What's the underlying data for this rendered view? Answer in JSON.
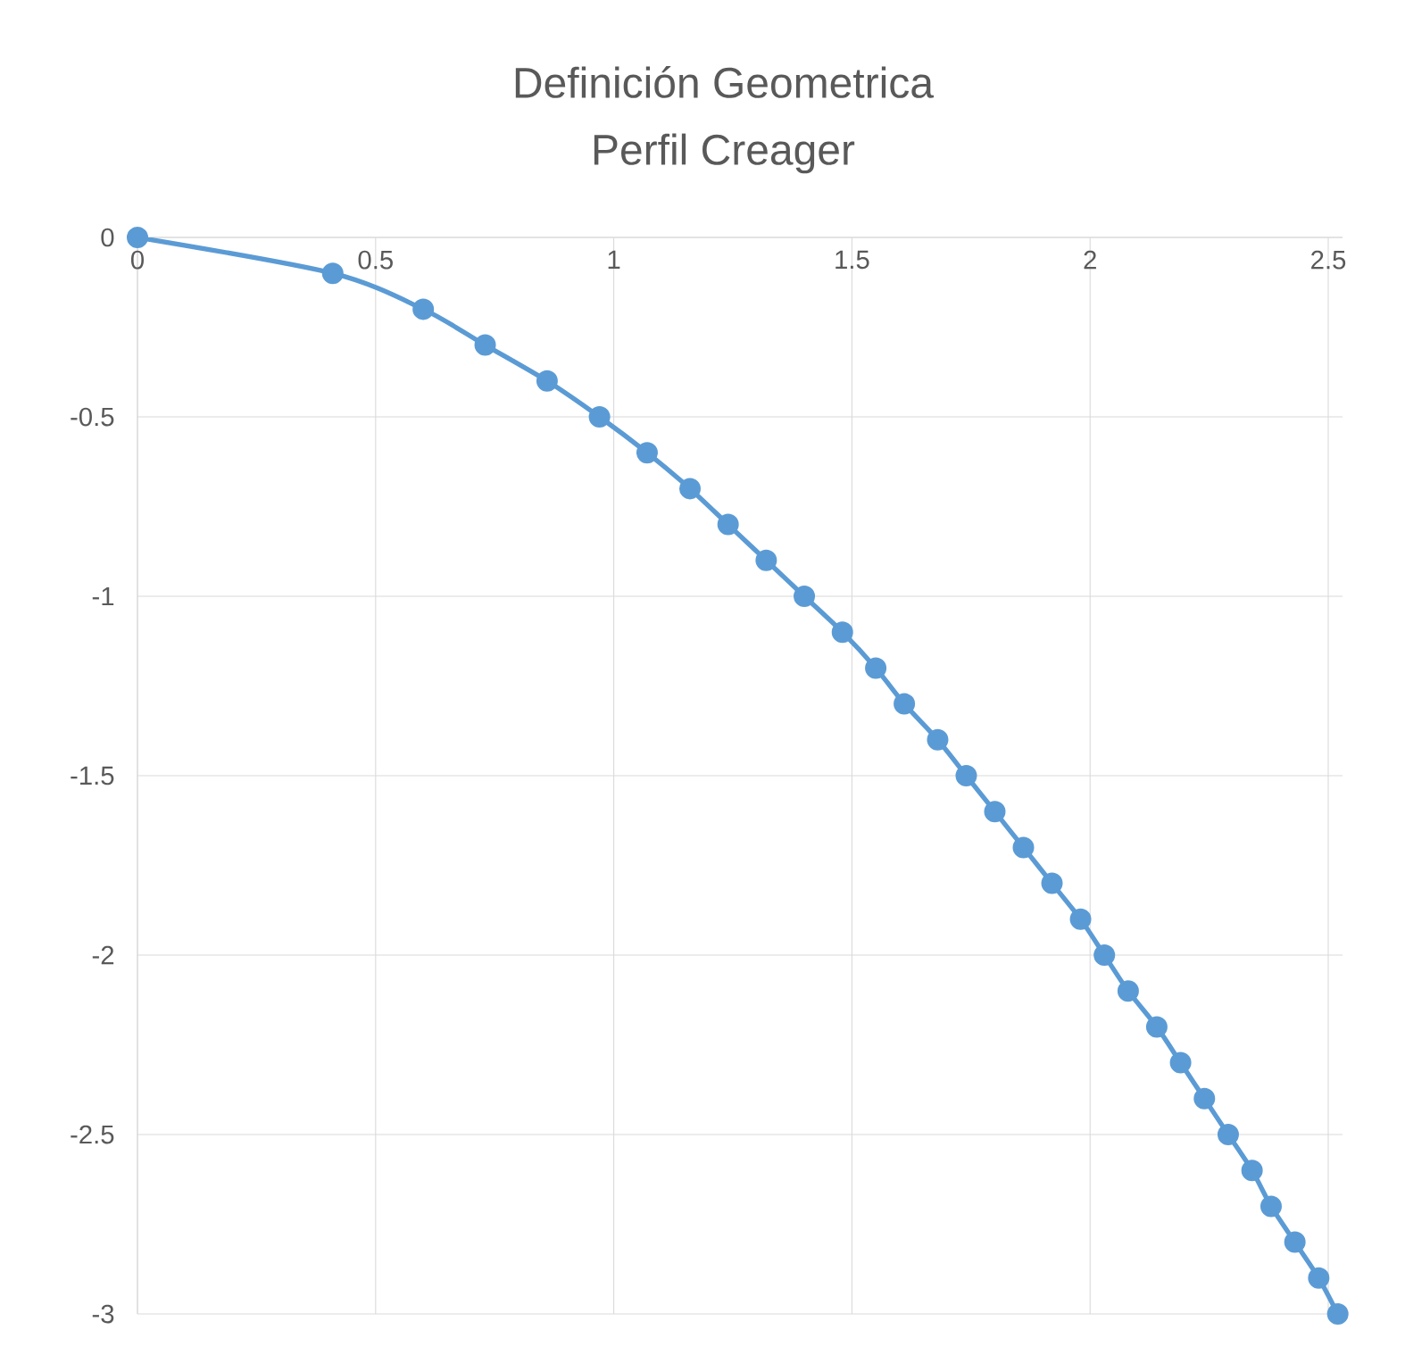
{
  "chart_data": {
    "type": "line",
    "title": "Definición Geometrica",
    "subtitle": "Perfil Creager",
    "x": [
      0,
      0.41,
      0.6,
      0.73,
      0.86,
      0.97,
      1.07,
      1.16,
      1.24,
      1.32,
      1.4,
      1.48,
      1.55,
      1.61,
      1.68,
      1.74,
      1.8,
      1.86,
      1.92,
      1.98,
      2.03,
      2.08,
      2.14,
      2.19,
      2.24,
      2.29,
      2.34,
      2.38,
      2.43,
      2.48,
      2.52
    ],
    "series": [
      {
        "color": "#5b9bd5",
        "values": [
          0,
          -0.1,
          -0.2,
          -0.3,
          -0.4,
          -0.5,
          -0.6,
          -0.7,
          -0.8,
          -0.9,
          -1,
          -1.1,
          -1.2,
          -1.3,
          -1.4,
          -1.5,
          -1.6,
          -1.7,
          -1.8,
          -1.9,
          -2,
          -2.1,
          -2.2,
          -2.3,
          -2.4,
          -2.5,
          -2.6,
          -2.7,
          -2.8,
          -2.9,
          -3
        ]
      }
    ],
    "xlim": [
      0,
      2.53
    ],
    "ylim": [
      -3,
      0
    ],
    "xticks": [
      0,
      0.5,
      1,
      1.5,
      2,
      2.5
    ],
    "yticks": [
      -3,
      -2.5,
      -2,
      -1.5,
      -1,
      -0.5,
      0
    ],
    "grid": true,
    "marker": "circle",
    "line_style": "solid"
  }
}
